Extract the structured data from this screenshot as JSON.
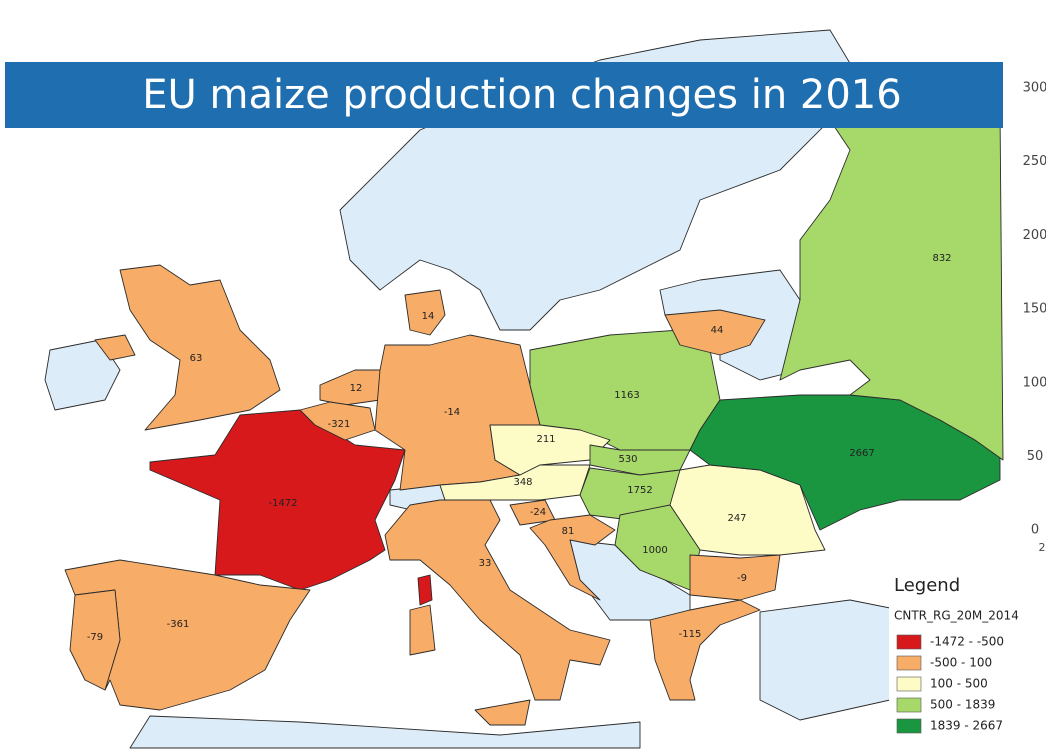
{
  "title": "EU maize production changes in 2016",
  "legend": {
    "title": "Legend",
    "layer": "CNTR_RG_20M_2014",
    "classes": [
      {
        "label": "-1472 - -500",
        "color": "#d7191c"
      },
      {
        "label": "-500 - 100",
        "color": "#f7ad68"
      },
      {
        "label": "100 - 500",
        "color": "#fdfcc6"
      },
      {
        "label": "500 - 1839",
        "color": "#a6d96a"
      },
      {
        "label": "1839 - 2667",
        "color": "#1a9641"
      }
    ]
  },
  "regions": [
    {
      "value": -1472,
      "color": "#d7191c"
    },
    {
      "value": -361,
      "color": "#f7ad68"
    },
    {
      "value": -79,
      "color": "#f7ad68"
    },
    {
      "value": 63,
      "color": "#f7ad68"
    },
    {
      "value": 12,
      "color": "#f7ad68"
    },
    {
      "value": -321,
      "color": "#f7ad68"
    },
    {
      "value": -14,
      "color": "#f7ad68"
    },
    {
      "value": 14,
      "color": "#f7ad68"
    },
    {
      "value": 1163,
      "color": "#a6d96a"
    },
    {
      "value": 44,
      "color": "#f7ad68"
    },
    {
      "value": 211,
      "color": "#fdfcc6"
    },
    {
      "value": 530,
      "color": "#a6d96a"
    },
    {
      "value": 348,
      "color": "#fdfcc6"
    },
    {
      "value": 1752,
      "color": "#a6d96a"
    },
    {
      "value": 247,
      "color": "#fdfcc6"
    },
    {
      "value": 2667,
      "color": "#1a9641"
    },
    {
      "value": 832,
      "color": "#a6d96a"
    },
    {
      "value": -24,
      "color": "#f7ad68"
    },
    {
      "value": 81,
      "color": "#f7ad68"
    },
    {
      "value": 1000,
      "color": "#a6d96a"
    },
    {
      "value": -9,
      "color": "#f7ad68"
    },
    {
      "value": 33,
      "color": "#f7ad68"
    },
    {
      "value": -115,
      "color": "#f7ad68"
    }
  ],
  "axis_fragment": [
    "300",
    "250",
    "200",
    "150",
    "100",
    "50",
    "0",
    "2"
  ]
}
